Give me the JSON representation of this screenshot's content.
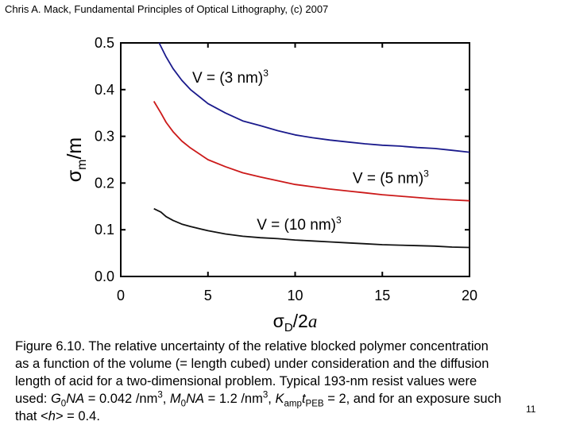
{
  "header": {
    "text": "Chris A. Mack, Fundamental Principles of Optical Lithography, (c) 2007"
  },
  "chart_data": {
    "type": "line",
    "title": "",
    "xlabel": "σD/2a",
    "ylabel": "σm/m",
    "xlim": [
      0,
      20
    ],
    "ylim": [
      0,
      0.5
    ],
    "xticks": [
      "0",
      "5",
      "10",
      "15",
      "20"
    ],
    "yticks": [
      "0.0",
      "0.1",
      "0.2",
      "0.3",
      "0.4",
      "0.5"
    ],
    "grid": false,
    "series": [
      {
        "name": "V = (3 nm)³",
        "color": "#1a1a8c",
        "x": [
          2.2,
          2.6,
          3.0,
          3.5,
          4.0,
          5.0,
          6.0,
          7.0,
          8.0,
          9.0,
          10.0,
          11.0,
          12.0,
          13.0,
          14.0,
          15.0,
          16.0,
          17.0,
          18.0,
          19.0,
          20.0
        ],
        "y": [
          0.5,
          0.47,
          0.445,
          0.42,
          0.4,
          0.37,
          0.35,
          0.333,
          0.323,
          0.312,
          0.303,
          0.297,
          0.292,
          0.288,
          0.284,
          0.281,
          0.279,
          0.276,
          0.274,
          0.27,
          0.266
        ]
      },
      {
        "name": "V = (5 nm)³",
        "color": "#cc1a1a",
        "x": [
          1.9,
          2.3,
          2.6,
          3.0,
          3.5,
          4.0,
          5.0,
          6.0,
          7.0,
          8.0,
          9.0,
          10.0,
          11.0,
          12.0,
          13.0,
          14.0,
          15.0,
          16.0,
          17.0,
          18.0,
          19.0,
          20.0
        ],
        "y": [
          0.375,
          0.35,
          0.33,
          0.31,
          0.29,
          0.275,
          0.25,
          0.235,
          0.222,
          0.213,
          0.205,
          0.197,
          0.192,
          0.187,
          0.183,
          0.179,
          0.175,
          0.172,
          0.169,
          0.166,
          0.164,
          0.162
        ]
      },
      {
        "name": "V = (10 nm)³",
        "color": "#111111",
        "x": [
          1.9,
          2.3,
          2.6,
          3.0,
          3.5,
          4.0,
          5.0,
          6.0,
          7.0,
          8.0,
          9.0,
          10.0,
          11.0,
          12.0,
          13.0,
          14.0,
          15.0,
          16.0,
          17.0,
          18.0,
          19.0,
          20.0
        ],
        "y": [
          0.145,
          0.138,
          0.128,
          0.12,
          0.112,
          0.107,
          0.098,
          0.091,
          0.086,
          0.083,
          0.081,
          0.078,
          0.076,
          0.074,
          0.072,
          0.07,
          0.068,
          0.067,
          0.066,
          0.065,
          0.063,
          0.062
        ]
      }
    ],
    "annotations": [
      {
        "text": "V = (3 nm)",
        "superscript": "3",
        "x": 4.1,
        "y": 0.415
      },
      {
        "text": "V = (5 nm)",
        "superscript": "3",
        "x": 13.3,
        "y": 0.2
      },
      {
        "text": "V = (10 nm)",
        "superscript": "3",
        "x": 7.8,
        "y": 0.1
      }
    ]
  },
  "caption": {
    "line1": "Figure 6.10.  The relative uncertainty of the relative blocked polymer concentration",
    "line2": "as a function of the volume (= length cubed) under consideration and the diffusion",
    "line3": "length of acid for a two-dimensional problem.  Typical 193-nm resist values were",
    "line4_prefix": "used: ",
    "g0_base": "G",
    "g0_sub": "0",
    "g0_rest": "NA",
    "g0_value": " = 0.042 /nm",
    "g0_exp": "3",
    "sep1": ", ",
    "m0_base": "M",
    "m0_sub": "0",
    "m0_rest": "NA",
    "m0_value": " = 1.2 /nm",
    "m0_exp": "3",
    "sep2": ", ",
    "k_base": "K",
    "k_sub": "amp",
    "t_base": "t",
    "t_sub": "PEB",
    "k_value": " = 2, and for an exposure such",
    "line5_prefix": "that <",
    "h_symbol": "h",
    "line5_suffix": "> = 0.4."
  },
  "page_number": "11"
}
